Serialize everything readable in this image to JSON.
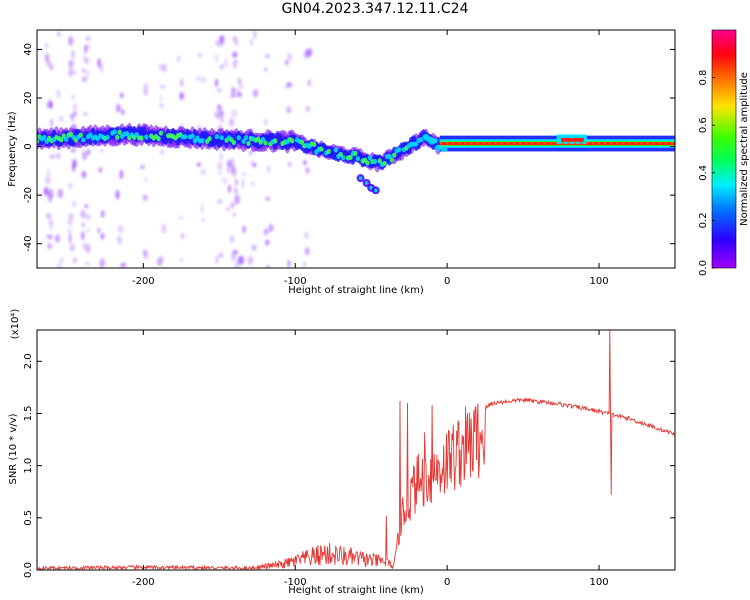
{
  "figure": {
    "title": "GN04.2023.347.12.11.C24"
  },
  "chart_data": [
    {
      "type": "heatmap",
      "xlabel": "Height of straight line (km)",
      "ylabel": "Frequency (Hz)",
      "xlim": [
        -270,
        150
      ],
      "ylim": [
        -50,
        48
      ],
      "xticks": [
        -200,
        -100,
        0,
        100
      ],
      "yticks": [
        -40,
        -20,
        0,
        20,
        40
      ],
      "colorbar": {
        "label": "Normalized spectral amplitude",
        "range": [
          0,
          1
        ],
        "ticks": [
          0.0,
          0.2,
          0.4,
          0.6,
          0.8
        ],
        "tick_labels": [
          "0.0",
          "0.2",
          "0.4",
          "0.6",
          "0.8"
        ],
        "colormap": "gist_rainbow_r"
      },
      "ridge": [
        {
          "x": -270,
          "y": 3
        },
        {
          "x": -210,
          "y": 5
        },
        {
          "x": -150,
          "y": 3
        },
        {
          "x": -100,
          "y": 2
        },
        {
          "x": -80,
          "y": -2
        },
        {
          "x": -60,
          "y": -4
        },
        {
          "x": -45,
          "y": -7
        },
        {
          "x": -30,
          "y": -2
        },
        {
          "x": -15,
          "y": 4
        },
        {
          "x": -5,
          "y": 0
        },
        {
          "x": 0,
          "y": 1
        },
        {
          "x": 60,
          "y": 1
        },
        {
          "x": 75,
          "y": 2
        },
        {
          "x": 90,
          "y": 2
        },
        {
          "x": 100,
          "y": 0
        },
        {
          "x": 150,
          "y": 1
        }
      ],
      "grid": false,
      "legend": "none"
    },
    {
      "type": "line",
      "xlabel": "Height of straight line (km)",
      "ylabel": "SNR (10 * v/v)",
      "y_multiplier": "(x10⁴)",
      "xlim": [
        -270,
        150
      ],
      "ylim": [
        0,
        2.3
      ],
      "xticks": [
        -200,
        -100,
        0,
        100
      ],
      "yticks": [
        0.0,
        0.5,
        1.0,
        1.5,
        2.0
      ],
      "ytick_labels": [
        "0.0",
        "0.5",
        "1.0",
        "1.5",
        "2.0"
      ],
      "color": "#e53935",
      "envelope": [
        {
          "x": -270,
          "y": 0.03
        },
        {
          "x": -200,
          "y": 0.04
        },
        {
          "x": -130,
          "y": 0.03
        },
        {
          "x": -110,
          "y": 0.08
        },
        {
          "x": -80,
          "y": 0.25
        },
        {
          "x": -60,
          "y": 0.18
        },
        {
          "x": -40,
          "y": 0.12
        },
        {
          "x": -35,
          "y": 0.05
        },
        {
          "x": -30,
          "y": 0.6
        },
        {
          "x": -20,
          "y": 1.0
        },
        {
          "x": -10,
          "y": 1.1
        },
        {
          "x": 0,
          "y": 1.25
        },
        {
          "x": 10,
          "y": 1.4
        },
        {
          "x": 20,
          "y": 1.5
        },
        {
          "x": 30,
          "y": 1.6
        },
        {
          "x": 50,
          "y": 1.63
        },
        {
          "x": 70,
          "y": 1.6
        },
        {
          "x": 90,
          "y": 1.55
        },
        {
          "x": 100,
          "y": 1.52
        },
        {
          "x": 120,
          "y": 1.45
        },
        {
          "x": 150,
          "y": 1.3
        }
      ],
      "spikes": [
        {
          "x": -40,
          "y": 0.52
        },
        {
          "x": -31,
          "y": 1.62
        },
        {
          "x": -26,
          "y": 1.6
        },
        {
          "x": -22,
          "y": 1.0
        },
        {
          "x": -15,
          "y": 1.32
        },
        {
          "x": -10,
          "y": 1.58
        },
        {
          "x": 107,
          "y": 2.32
        },
        {
          "x": 107.8,
          "y": 0.72
        }
      ],
      "grid": false,
      "legend": "none"
    }
  ]
}
